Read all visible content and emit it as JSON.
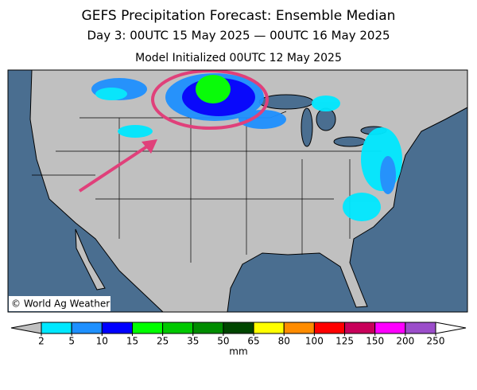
{
  "header": {
    "title": "GEFS Precipitation Forecast: Ensemble Median",
    "subtitle": "Day 3: 00UTC 15 May 2025 — 00UTC 16 May 2025",
    "initialized": "Model Initialized 00UTC 12 May 2025"
  },
  "map": {
    "credit": "© World Ag Weather"
  },
  "colorbar": {
    "ticks": [
      2,
      5,
      10,
      15,
      25,
      35,
      50,
      65,
      80,
      100,
      125,
      150,
      200,
      250
    ],
    "colors": [
      "#00e8ff",
      "#1e90ff",
      "#0000ff",
      "#00ff00",
      "#00c800",
      "#008c00",
      "#004600",
      "#ffff00",
      "#ff8c00",
      "#ff0000",
      "#c8005a",
      "#ff00ff",
      "#9b4dca"
    ],
    "below_color": "#c0c0c0",
    "above_color": "#ffffff",
    "unit": "mm"
  }
}
